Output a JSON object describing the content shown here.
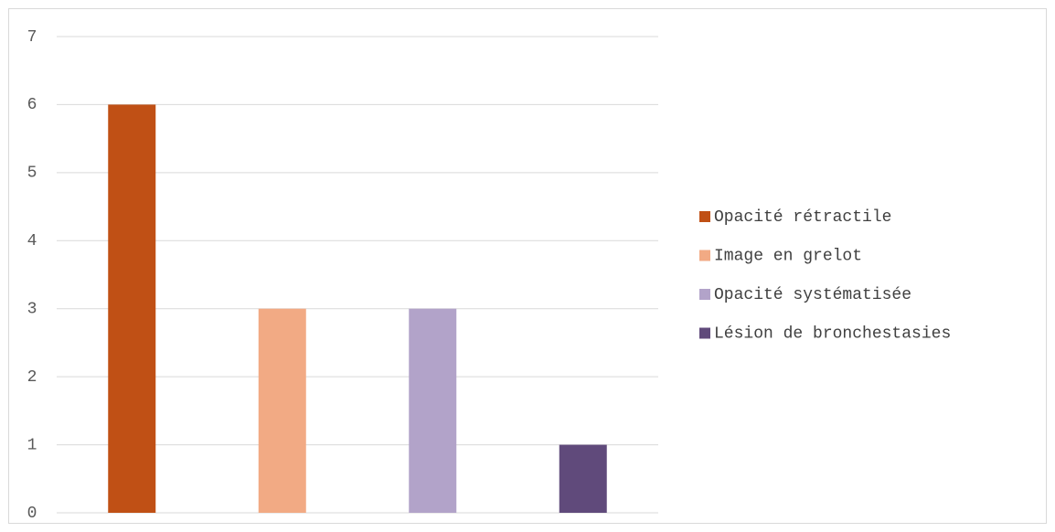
{
  "chart_data": {
    "type": "bar",
    "categories": [
      null
    ],
    "series": [
      {
        "name": "Opacité rétractile",
        "color": "#c05015",
        "values": [
          6
        ]
      },
      {
        "name": "Image en grelot",
        "color": "#f2aa84",
        "values": [
          3
        ]
      },
      {
        "name": "Opacité systématisée",
        "color": "#b2a3c9",
        "values": [
          3
        ]
      },
      {
        "name": "Lésion de bronchestasies",
        "color": "#604a7b",
        "values": [
          1
        ]
      }
    ],
    "ylim": [
      0,
      7
    ],
    "yticks": [
      0,
      1,
      2,
      3,
      4,
      5,
      6,
      7
    ],
    "grid": true,
    "legend": "right"
  }
}
